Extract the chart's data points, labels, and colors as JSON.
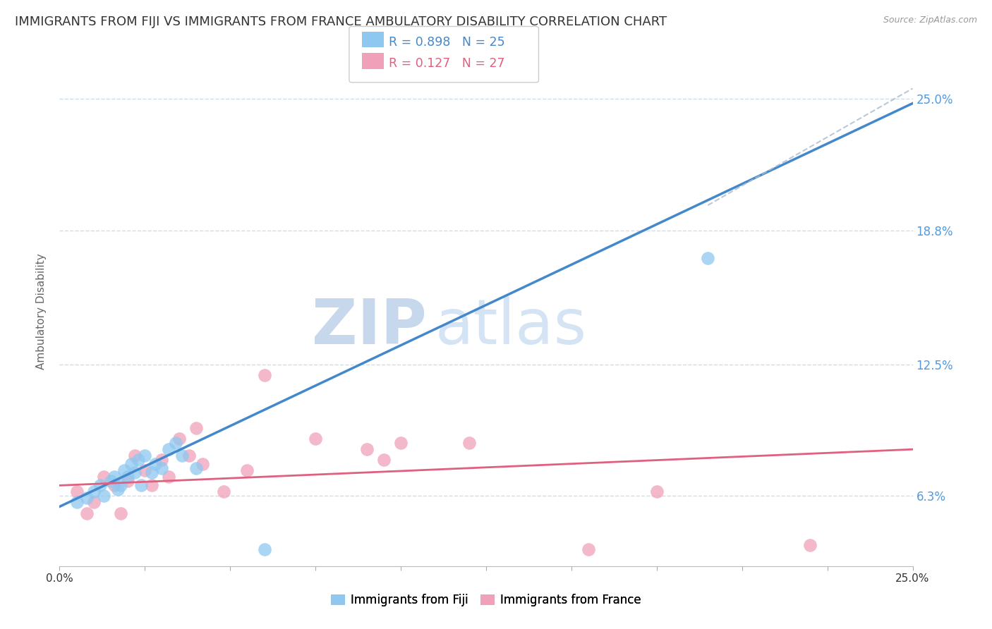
{
  "title": "IMMIGRANTS FROM FIJI VS IMMIGRANTS FROM FRANCE AMBULATORY DISABILITY CORRELATION CHART",
  "source": "Source: ZipAtlas.com",
  "ylabel": "Ambulatory Disability",
  "xlim": [
    0.0,
    0.25
  ],
  "ylim": [
    0.03,
    0.27
  ],
  "yticks": [
    0.063,
    0.125,
    0.188,
    0.25
  ],
  "ytick_labels": [
    "6.3%",
    "12.5%",
    "18.8%",
    "25.0%"
  ],
  "xticks": [
    0.0,
    0.025,
    0.05,
    0.075,
    0.1,
    0.125,
    0.15,
    0.175,
    0.2,
    0.225,
    0.25
  ],
  "fiji_color": "#8ec8f0",
  "france_color": "#f0a0b8",
  "fiji_line_color": "#4488cc",
  "france_line_color": "#e06080",
  "fiji_R": 0.898,
  "fiji_N": 25,
  "france_R": 0.127,
  "france_N": 27,
  "legend_label_fiji": "Immigrants from Fiji",
  "legend_label_france": "Immigrants from France",
  "watermark_zip": "ZIP",
  "watermark_atlas": "atlas",
  "right_tick_color": "#5599dd",
  "grid_color": "#ccddee",
  "title_fontsize": 13,
  "axis_label_fontsize": 11,
  "tick_fontsize": 11,
  "fiji_scatter_x": [
    0.005,
    0.008,
    0.01,
    0.012,
    0.013,
    0.015,
    0.016,
    0.017,
    0.018,
    0.019,
    0.02,
    0.021,
    0.022,
    0.023,
    0.024,
    0.025,
    0.027,
    0.028,
    0.03,
    0.032,
    0.034,
    0.036,
    0.04,
    0.06,
    0.19
  ],
  "fiji_scatter_y": [
    0.06,
    0.062,
    0.065,
    0.068,
    0.063,
    0.07,
    0.072,
    0.066,
    0.068,
    0.075,
    0.072,
    0.078,
    0.074,
    0.08,
    0.068,
    0.082,
    0.074,
    0.078,
    0.076,
    0.085,
    0.088,
    0.082,
    0.076,
    0.038,
    0.175
  ],
  "france_scatter_x": [
    0.005,
    0.008,
    0.01,
    0.013,
    0.016,
    0.018,
    0.02,
    0.022,
    0.025,
    0.027,
    0.03,
    0.032,
    0.035,
    0.038,
    0.04,
    0.042,
    0.048,
    0.055,
    0.06,
    0.075,
    0.09,
    0.095,
    0.1,
    0.12,
    0.155,
    0.175,
    0.22
  ],
  "france_scatter_y": [
    0.065,
    0.055,
    0.06,
    0.072,
    0.068,
    0.055,
    0.07,
    0.082,
    0.075,
    0.068,
    0.08,
    0.072,
    0.09,
    0.082,
    0.095,
    0.078,
    0.065,
    0.075,
    0.12,
    0.09,
    0.085,
    0.08,
    0.088,
    0.088,
    0.038,
    0.065,
    0.04
  ],
  "fiji_line_x": [
    0.0,
    0.25
  ],
  "fiji_line_y": [
    0.058,
    0.248
  ],
  "france_line_x": [
    0.0,
    0.25
  ],
  "france_line_y": [
    0.068,
    0.085
  ],
  "dash_line_x": [
    0.19,
    0.25
  ],
  "dash_line_y": [
    0.2,
    0.255
  ]
}
